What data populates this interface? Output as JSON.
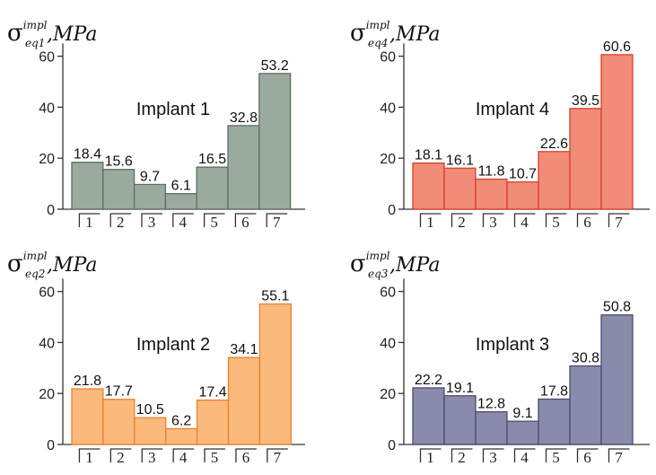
{
  "chart_data": [
    {
      "type": "bar",
      "title": "Implant 1",
      "ylabel": {
        "sigma": "σ",
        "sup": "impl",
        "sub": "eq1",
        "unit": ",MPa"
      },
      "categories": [
        "1",
        "2",
        "3",
        "4",
        "5",
        "6",
        "7"
      ],
      "values": [
        18.4,
        15.6,
        9.7,
        6.1,
        16.5,
        32.8,
        53.2
      ],
      "value_labels": [
        "18.4",
        "15.6",
        "9.7",
        "6.1",
        "16.5",
        "32.8",
        "53.2"
      ],
      "ylim": [
        0,
        65
      ],
      "yticks": [
        0,
        20,
        40,
        60
      ],
      "fill": "#9aaa9e",
      "stroke": "#5e6e62"
    },
    {
      "type": "bar",
      "title": "Implant 4",
      "ylabel": {
        "sigma": "σ",
        "sup": "impl",
        "sub": "eq4",
        "unit": ",MPa"
      },
      "categories": [
        "1",
        "2",
        "3",
        "4",
        "5",
        "6",
        "7"
      ],
      "values": [
        18.1,
        16.1,
        11.8,
        10.7,
        22.6,
        39.5,
        60.6
      ],
      "value_labels": [
        "18.1",
        "16.1",
        "11.8",
        "10.7",
        "22.6",
        "39.5",
        "60.6"
      ],
      "ylim": [
        0,
        65
      ],
      "yticks": [
        0,
        20,
        40,
        60
      ],
      "fill": "#f08c78",
      "stroke": "#d8402c"
    },
    {
      "type": "bar",
      "title": "Implant 2",
      "ylabel": {
        "sigma": "σ",
        "sup": "impl",
        "sub": "eq2",
        "unit": ",MPa"
      },
      "categories": [
        "1",
        "2",
        "3",
        "4",
        "5",
        "6",
        "7"
      ],
      "values": [
        21.8,
        17.7,
        10.5,
        6.2,
        17.4,
        34.1,
        55.1
      ],
      "value_labels": [
        "21.8",
        "17.7",
        "10.5",
        "6.2",
        "17.4",
        "34.1",
        "55.1"
      ],
      "ylim": [
        0,
        65
      ],
      "yticks": [
        0,
        20,
        40,
        60
      ],
      "fill": "#fbb97c",
      "stroke": "#e8822e"
    },
    {
      "type": "bar",
      "title": "Implant 3",
      "ylabel": {
        "sigma": "σ",
        "sup": "impl",
        "sub": "eq3",
        "unit": ",MPa"
      },
      "categories": [
        "1",
        "2",
        "3",
        "4",
        "5",
        "6",
        "7"
      ],
      "values": [
        22.2,
        19.1,
        12.8,
        9.1,
        17.8,
        30.8,
        50.8
      ],
      "value_labels": [
        "22.2",
        "19.1",
        "12.8",
        "9.1",
        "17.8",
        "30.8",
        "50.8"
      ],
      "ylim": [
        0,
        65
      ],
      "yticks": [
        0,
        20,
        40,
        60
      ],
      "fill": "#8a8aaa",
      "stroke": "#4c4c6e"
    }
  ]
}
